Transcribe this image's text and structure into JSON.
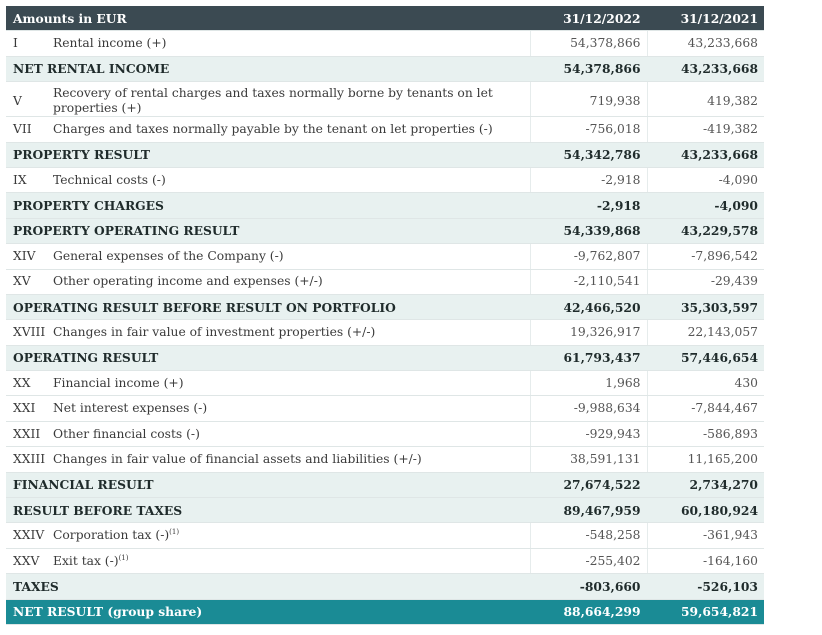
{
  "header": {
    "title": "Amounts in EUR",
    "col_2022": "31/12/2022",
    "col_2021": "31/12/2021"
  },
  "rows": [
    {
      "num": "I",
      "label": "Rental income (+)",
      "v2022": "54,378,866",
      "v2021": "43,233,668",
      "type": "data"
    },
    {
      "num": "",
      "label": "NET RENTAL INCOME",
      "v2022": "54,378,866",
      "v2021": "43,233,668",
      "type": "sub"
    },
    {
      "num": "V",
      "label": "Recovery of rental charges and taxes normally borne by tenants on let properties (+)",
      "v2022": "719,938",
      "v2021": "419,382",
      "type": "data"
    },
    {
      "num": "VII",
      "label": "Charges and taxes normally payable by the tenant on let properties (-)",
      "v2022": "-756,018",
      "v2021": "-419,382",
      "type": "data"
    },
    {
      "num": "",
      "label": "PROPERTY RESULT",
      "v2022": "54,342,786",
      "v2021": "43,233,668",
      "type": "sub"
    },
    {
      "num": "IX",
      "label": "Technical costs (-)",
      "v2022": "-2,918",
      "v2021": "-4,090",
      "type": "data"
    },
    {
      "num": "",
      "label": "PROPERTY CHARGES",
      "v2022": "-2,918",
      "v2021": "-4,090",
      "type": "sub"
    },
    {
      "num": "",
      "label": "PROPERTY OPERATING RESULT",
      "v2022": "54,339,868",
      "v2021": "43,229,578",
      "type": "sub"
    },
    {
      "num": "XIV",
      "label": "General expenses of the Company (-)",
      "v2022": "-9,762,807",
      "v2021": "-7,896,542",
      "type": "data"
    },
    {
      "num": "XV",
      "label": "Other operating income and expenses (+/-)",
      "v2022": "-2,110,541",
      "v2021": "-29,439",
      "type": "data"
    },
    {
      "num": "",
      "label": "OPERATING RESULT BEFORE RESULT ON PORTFOLIO",
      "v2022": "42,466,520",
      "v2021": "35,303,597",
      "type": "sub"
    },
    {
      "num": "XVIII",
      "label": "Changes in fair value of investment properties (+/-)",
      "v2022": "19,326,917",
      "v2021": "22,143,057",
      "type": "data"
    },
    {
      "num": "",
      "label": "OPERATING RESULT",
      "v2022": "61,793,437",
      "v2021": "57,446,654",
      "type": "sub"
    },
    {
      "num": "XX",
      "label": "Financial income (+)",
      "v2022": "1,968",
      "v2021": "430",
      "type": "data"
    },
    {
      "num": "XXI",
      "label": "Net interest expenses (-)",
      "v2022": "-9,988,634",
      "v2021": "-7,844,467",
      "type": "data"
    },
    {
      "num": "XXII",
      "label": "Other financial costs (-)",
      "v2022": "-929,943",
      "v2021": "-586,893",
      "type": "data"
    },
    {
      "num": "XXIII",
      "label": "Changes in fair value of financial assets and liabilities (+/-)",
      "v2022": "38,591,131",
      "v2021": "11,165,200",
      "type": "data"
    },
    {
      "num": "",
      "label": "FINANCIAL RESULT",
      "v2022": "27,674,522",
      "v2021": "2,734,270",
      "type": "sub"
    },
    {
      "num": "",
      "label": "RESULT BEFORE TAXES",
      "v2022": "89,467,959",
      "v2021": "60,180,924",
      "type": "sub"
    },
    {
      "num": "XXIV",
      "label": "Corporation tax (-)",
      "footnote": "(1)",
      "v2022": "-548,258",
      "v2021": "-361,943",
      "type": "data"
    },
    {
      "num": "XXV",
      "label": "Exit tax (-)",
      "footnote": "(1)",
      "v2022": "-255,402",
      "v2021": "-164,160",
      "type": "data"
    },
    {
      "num": "",
      "label": "TAXES",
      "v2022": "-803,660",
      "v2021": "-526,103",
      "type": "sub"
    },
    {
      "num": "",
      "label": "NET RESULT (group share)",
      "v2022": "88,664,299",
      "v2021": "59,654,821",
      "type": "final"
    }
  ]
}
